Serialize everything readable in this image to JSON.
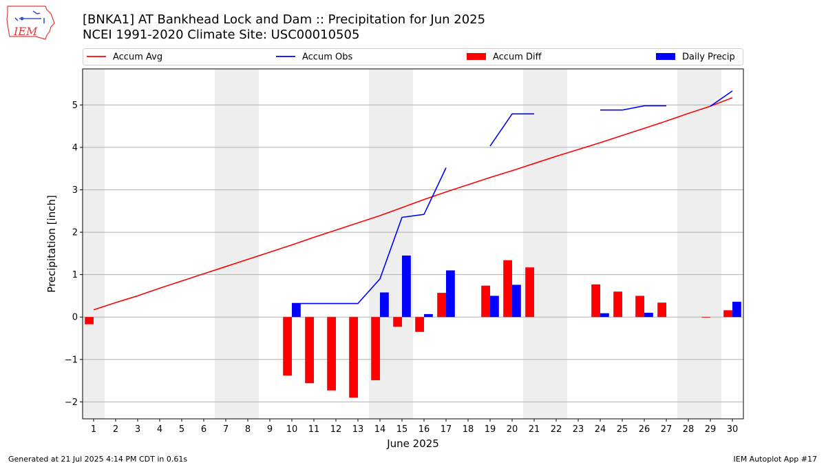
{
  "header": {
    "title": "[BNKA1] AT Bankhead Lock and Dam :: Precipitation for Jun 2025",
    "subtitle": "NCEI 1991-2020 Climate Site: USC00010505"
  },
  "logo": {
    "text": "IEM",
    "icon": "iem-iowa-logo"
  },
  "footer": {
    "generated": "Generated at 21 Jul 2025 4:14 PM CDT in 0.61s",
    "app": "IEM Autoplot App #17"
  },
  "chart_data": {
    "type": "bar",
    "xlabel": "June 2025",
    "ylabel": "Precipitation [inch]",
    "xlim": [
      0.5,
      30.5
    ],
    "ylim": [
      -2.4,
      5.85
    ],
    "yticks": [
      -2,
      -1,
      0,
      1,
      2,
      3,
      4,
      5
    ],
    "ytick_labels": [
      "−2",
      "−1",
      "0",
      "1",
      "2",
      "3",
      "4",
      "5"
    ],
    "grid": "horizontal",
    "legend_position": "top",
    "weekend_shading": [
      [
        1
      ],
      [
        7,
        8
      ],
      [
        14,
        15
      ],
      [
        21,
        22
      ],
      [
        28,
        29
      ]
    ],
    "colors": {
      "avg": "#ff0000",
      "obs": "#0000ff",
      "diff": "#ff0000",
      "daily": "#0000ff",
      "weekend": "#eeeeee",
      "grid": "#b0b0b0"
    },
    "days": [
      1,
      2,
      3,
      4,
      5,
      6,
      7,
      8,
      9,
      10,
      11,
      12,
      13,
      14,
      15,
      16,
      17,
      18,
      19,
      20,
      21,
      22,
      23,
      24,
      25,
      26,
      27,
      28,
      29,
      30
    ],
    "series": [
      {
        "name": "Accum Avg",
        "kind": "line",
        "values": [
          0.17,
          0.34,
          0.5,
          0.68,
          0.85,
          1.02,
          1.19,
          1.36,
          1.53,
          1.7,
          1.88,
          2.05,
          2.22,
          2.39,
          2.58,
          2.77,
          2.95,
          3.12,
          3.29,
          3.45,
          3.62,
          3.79,
          3.95,
          4.11,
          4.28,
          4.45,
          4.62,
          4.8,
          4.97,
          5.17
        ]
      },
      {
        "name": "Accum Obs",
        "kind": "line",
        "values": [
          null,
          null,
          null,
          null,
          null,
          null,
          null,
          null,
          null,
          0.32,
          0.32,
          0.32,
          0.32,
          0.9,
          2.35,
          2.42,
          3.52,
          null,
          4.03,
          4.79,
          4.79,
          null,
          null,
          4.88,
          4.88,
          4.98,
          4.98,
          null,
          4.97,
          5.33
        ]
      },
      {
        "name": "Accum Diff",
        "kind": "bar",
        "values": [
          -0.17,
          null,
          null,
          null,
          null,
          null,
          null,
          null,
          null,
          -1.38,
          -1.56,
          -1.73,
          -1.9,
          -1.49,
          -0.23,
          -0.35,
          0.57,
          null,
          0.74,
          1.34,
          1.17,
          null,
          null,
          0.77,
          0.6,
          0.5,
          0.34,
          null,
          -0.01,
          0.16
        ]
      },
      {
        "name": "Daily Precip",
        "kind": "bar",
        "values": [
          null,
          null,
          null,
          null,
          null,
          null,
          null,
          null,
          null,
          0.32,
          null,
          null,
          null,
          0.58,
          1.45,
          0.07,
          1.1,
          null,
          0.5,
          0.76,
          null,
          null,
          null,
          0.09,
          null,
          0.1,
          null,
          null,
          null,
          0.36
        ]
      }
    ]
  }
}
